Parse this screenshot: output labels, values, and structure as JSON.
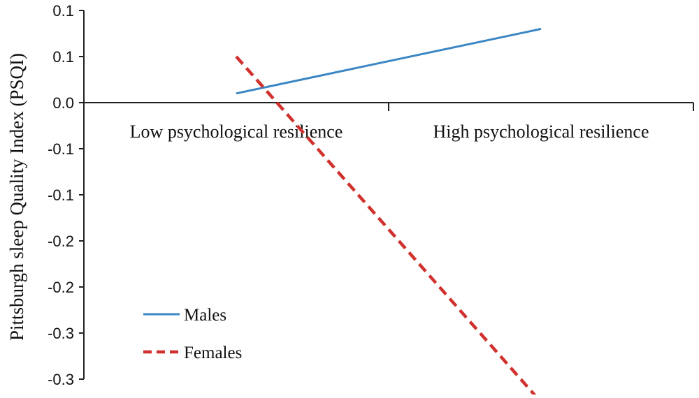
{
  "chart_data": {
    "type": "line",
    "title": "",
    "xlabel": "",
    "ylabel": "Pittsburgh sleep Quality Index (PSQI)",
    "categories": [
      "Low psychological resilience",
      "High psychological resilience"
    ],
    "series": [
      {
        "name": "Males",
        "values": [
          0.01,
          0.08
        ],
        "color": "#3B86C4",
        "style": "solid"
      },
      {
        "name": "Females",
        "values": [
          0.05,
          -0.325
        ],
        "color": "#D0312D",
        "style": "dashed"
      }
    ],
    "ylim": [
      -0.3,
      0.1
    ],
    "yticks": [
      {
        "value": 0.1,
        "label": "0.1"
      },
      {
        "value": 0.05,
        "label": "0.1"
      },
      {
        "value": 0.0,
        "label": "0.0"
      },
      {
        "value": -0.05,
        "label": "-0.1"
      },
      {
        "value": -0.1,
        "label": "-0.1"
      },
      {
        "value": -0.15,
        "label": "-0.2"
      },
      {
        "value": -0.2,
        "label": "-0.2"
      },
      {
        "value": -0.25,
        "label": "-0.3"
      },
      {
        "value": -0.3,
        "label": "-0.3"
      }
    ],
    "grid": false,
    "legend": "bottom-left"
  }
}
